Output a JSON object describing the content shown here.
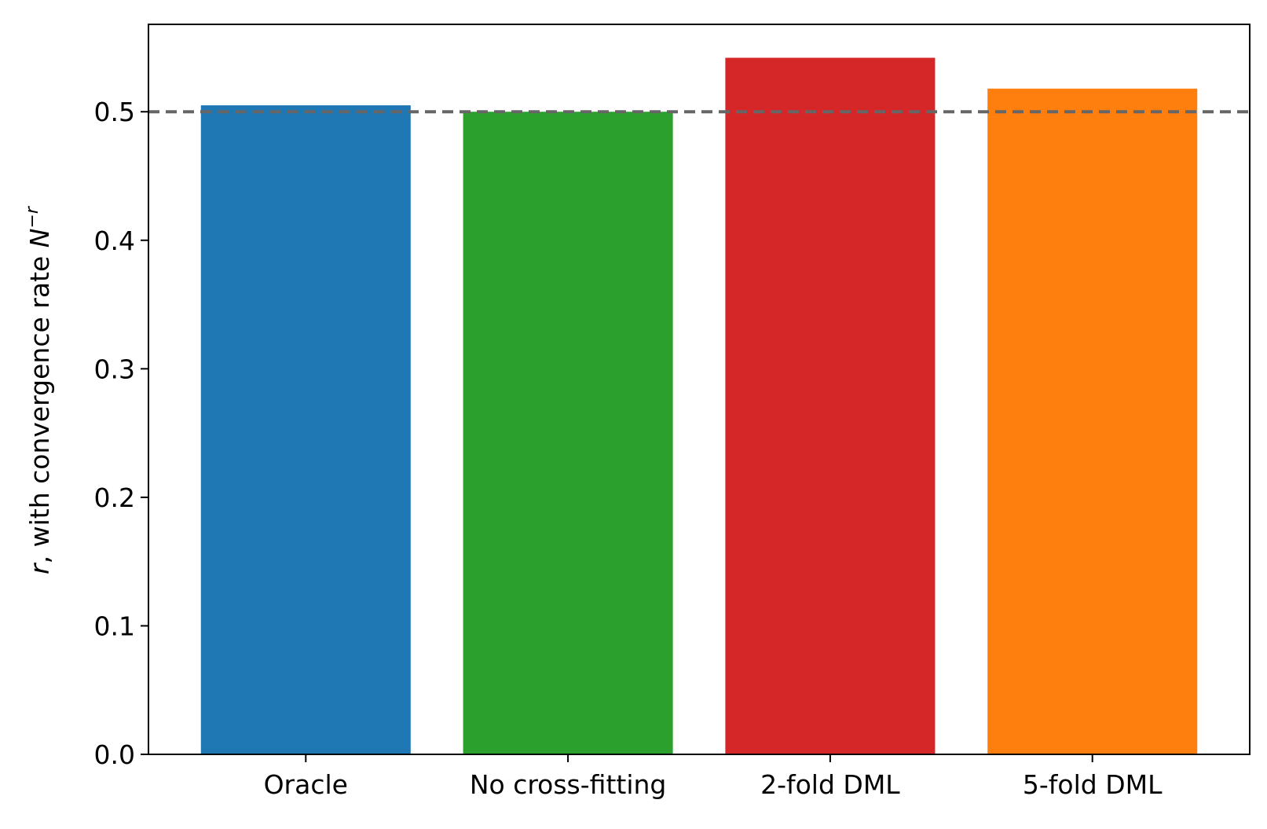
{
  "chart_data": {
    "type": "bar",
    "categories": [
      "Oracle",
      "No cross-fitting",
      "2-fold DML",
      "5-fold DML"
    ],
    "values": [
      0.505,
      0.5,
      0.542,
      0.518
    ],
    "colors": [
      "#1f77b4",
      "#2ca02c",
      "#d62728",
      "#ff7f0e"
    ],
    "ylabel_parts": {
      "var": "r",
      "text": ", with convergence rate ",
      "base": "N",
      "exponent": "−r"
    },
    "yticks": [
      {
        "value": 0.0,
        "label": "0.0"
      },
      {
        "value": 0.1,
        "label": "0.1"
      },
      {
        "value": 0.2,
        "label": "0.2"
      },
      {
        "value": 0.3,
        "label": "0.3"
      },
      {
        "value": 0.4,
        "label": "0.4"
      },
      {
        "value": 0.5,
        "label": "0.5"
      }
    ],
    "ylim": [
      0,
      0.568
    ],
    "reference_line": {
      "value": 0.5,
      "style": "dashed",
      "color": "#666666"
    },
    "grid": false,
    "legend": "none"
  }
}
